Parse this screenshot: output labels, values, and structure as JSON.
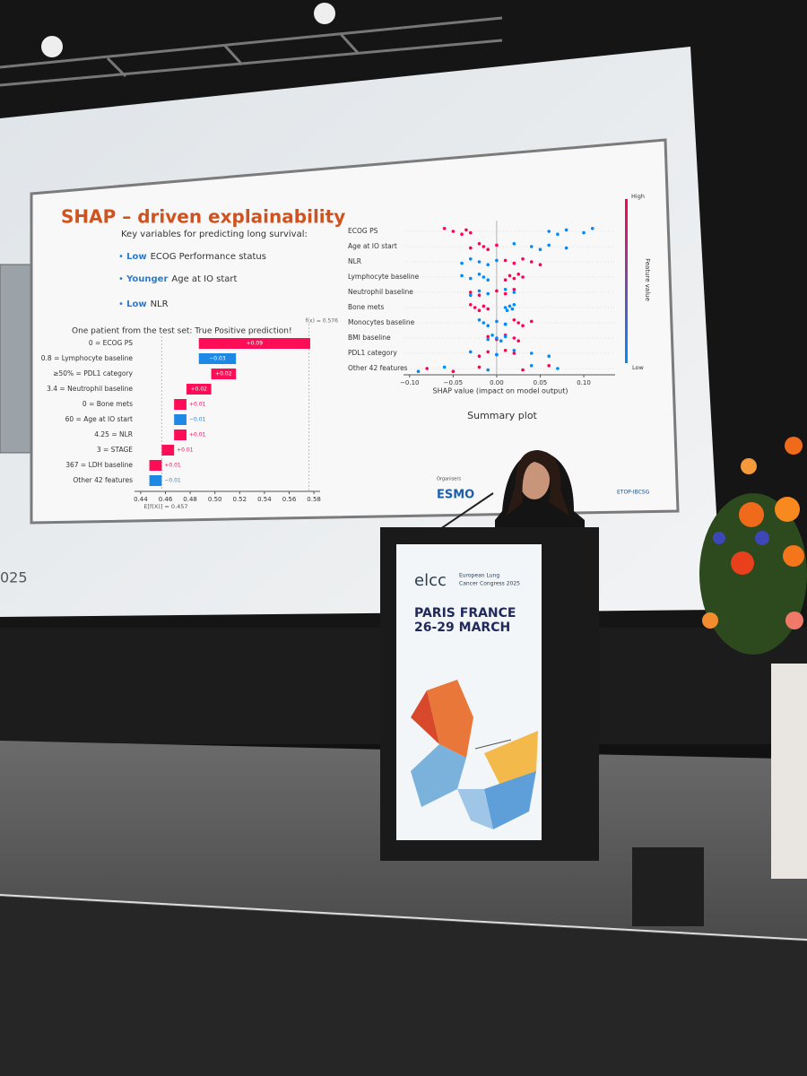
{
  "slide": {
    "title": "SHAP – driven explainability",
    "intro": "Key variables for predicting long survival:",
    "bullets": [
      {
        "emphasis": "Low",
        "text": "ECOG Performance status"
      },
      {
        "emphasis": "Younger",
        "text": "Age at IO start"
      },
      {
        "emphasis": "Low",
        "text": "NLR"
      }
    ],
    "patient_note": "One patient from the test set: True Positive prediction!",
    "summary_caption": "Summary plot",
    "organisers": "Organisers",
    "logos": [
      "ESMO",
      "ETOP-IBCSG"
    ],
    "year_fragment": "025"
  },
  "podium": {
    "brand": "elcc",
    "congress": [
      "European Lung",
      "Cancer Congress 2025"
    ],
    "city": "PARIS FRANCE",
    "dates": "26-29 MARCH"
  },
  "chart_data": [
    {
      "type": "waterfall",
      "categories": [
        "0 = ECOG PS",
        "0.8 = Lymphocyte baseline",
        "≥50% = PDL1 category",
        "3.4 = Neutrophil baseline",
        "0 = Bone mets",
        "60 = Age at IO start",
        "4.25 = NLR",
        "3 = STAGE",
        "367 = LDH baseline",
        "Other 42 features"
      ],
      "values": [
        0.09,
        -0.03,
        0.02,
        0.02,
        0.01,
        -0.01,
        0.01,
        0.01,
        0.01,
        -0.01
      ],
      "value_labels": [
        "+0.09",
        "−0.03",
        "+0.02",
        "+0.02",
        "+0.01",
        "−0.01",
        "+0.01",
        "+0.01",
        "+0.01",
        "−0.01"
      ],
      "base": {
        "value": 0.457,
        "label": "E[f(X)] = 0.457"
      },
      "output": {
        "value": 0.576,
        "label": "f(x) = 0.576"
      },
      "colors": {
        "positive": "#ff0d57",
        "negative": "#1e88e5"
      },
      "xlim": [
        0.435,
        0.585
      ],
      "xticks": [
        0.44,
        0.46,
        0.48,
        {
          "value": 0.5,
          "label": "0.50"
        },
        0.52,
        0.54,
        0.56,
        0.58
      ]
    },
    {
      "type": "beeswarm",
      "categories": [
        "ECOG PS",
        "Age at IO start",
        "NLR",
        "Lymphocyte baseline",
        "Neutrophil baseline",
        "Bone mets",
        "Monocytes baseline",
        "BMI baseline",
        "PDL1 category",
        "Other 42 features"
      ],
      "series": [
        {
          "name": "High",
          "color": "#ff0052",
          "values": [
            [
              -0.06,
              -0.05,
              -0.04,
              -0.035,
              -0.03
            ],
            [
              -0.03,
              -0.02,
              -0.015,
              -0.01,
              0
            ],
            [
              0.01,
              0.02,
              0.03,
              0.04,
              0.05
            ],
            [
              0.01,
              0.015,
              0.02,
              0.025,
              0.03
            ],
            [
              -0.03,
              -0.02,
              0,
              0.01,
              0.02
            ],
            [
              -0.03,
              -0.025,
              -0.02,
              -0.015,
              -0.01
            ],
            [
              0.01,
              0.02,
              0.025,
              0.03,
              0.04
            ],
            [
              -0.01,
              0,
              0.01,
              0.02,
              0.025
            ],
            [
              -0.02,
              -0.01,
              0,
              0.01,
              0.02
            ],
            [
              -0.08,
              -0.05,
              -0.02,
              0.03,
              0.06
            ]
          ]
        },
        {
          "name": "Low",
          "color": "#008bfb",
          "values": [
            [
              0.06,
              0.07,
              0.08,
              0.1,
              0.11
            ],
            [
              0.02,
              0.04,
              0.05,
              0.06,
              0.08
            ],
            [
              -0.04,
              -0.03,
              -0.02,
              -0.01,
              0
            ],
            [
              -0.04,
              -0.03,
              -0.02,
              -0.015,
              -0.01
            ],
            [
              -0.03,
              -0.02,
              -0.01,
              0.01,
              0.02
            ],
            [
              0.01,
              0.012,
              0.015,
              0.018,
              0.02
            ],
            [
              -0.02,
              -0.015,
              -0.01,
              0,
              0.01
            ],
            [
              -0.01,
              -0.005,
              0,
              0.005,
              0.01
            ],
            [
              -0.03,
              0,
              0.02,
              0.04,
              0.06
            ],
            [
              -0.09,
              -0.06,
              -0.01,
              0.04,
              0.07
            ]
          ]
        }
      ],
      "x_label": "SHAP value (impact on model output)",
      "colorbar_label": "Feature value",
      "xlim": [
        -0.107,
        0.136
      ],
      "xticks": [
        {
          "value": -0.1,
          "label": "−0.10"
        },
        {
          "value": -0.05,
          "label": "−0.05"
        },
        {
          "value": 0,
          "label": "0.00"
        },
        0.05,
        {
          "value": 0.1,
          "label": "0.10"
        }
      ]
    }
  ]
}
